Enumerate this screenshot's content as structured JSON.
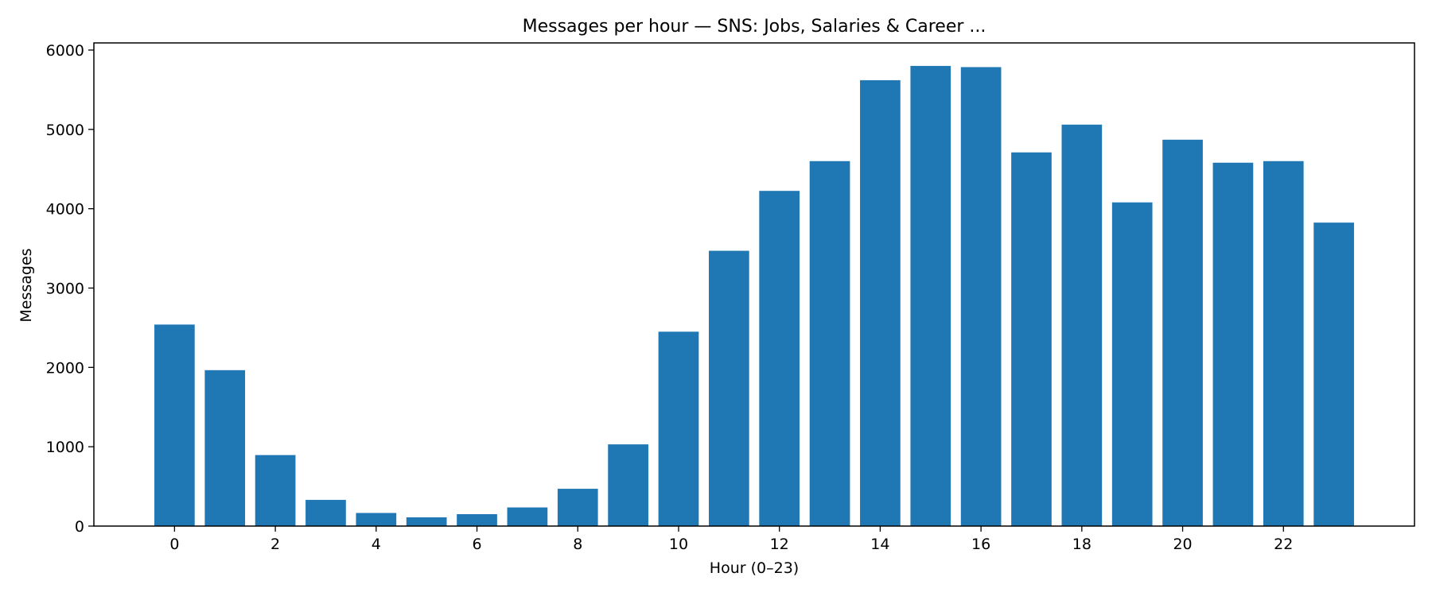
{
  "chart_data": {
    "type": "bar",
    "title": "Messages per hour — SNS: Jobs, Salaries & Career ...",
    "xlabel": "Hour (0–23)",
    "ylabel": "Messages",
    "categories": [
      0,
      1,
      2,
      3,
      4,
      5,
      6,
      7,
      8,
      9,
      10,
      11,
      12,
      13,
      14,
      15,
      16,
      17,
      18,
      19,
      20,
      21,
      22,
      23
    ],
    "values": [
      2540,
      1965,
      895,
      330,
      165,
      110,
      150,
      235,
      470,
      1030,
      2450,
      3470,
      4225,
      4600,
      5620,
      5800,
      5785,
      4710,
      5060,
      4080,
      4870,
      4580,
      4600,
      3825
    ],
    "x_ticks": [
      0,
      2,
      4,
      6,
      8,
      10,
      12,
      14,
      16,
      18,
      20,
      22
    ],
    "y_ticks": [
      0,
      1000,
      2000,
      3000,
      4000,
      5000,
      6000
    ],
    "xlim": [
      -1.6,
      24.6
    ],
    "ylim": [
      0,
      6090
    ],
    "bar_color": "#1f77b4",
    "grid": false,
    "legend": false
  }
}
